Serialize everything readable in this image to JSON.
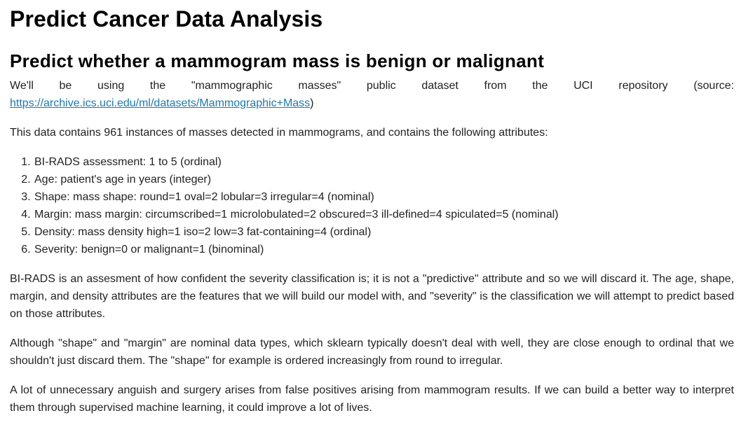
{
  "title": "Predict Cancer Data Analysis",
  "subtitle": "Predict whether a mammogram mass is benign or malignant",
  "intro": {
    "before": "We'll be using the \"mammographic masses\" public dataset from the UCI repository (source: ",
    "link": "https://archive.ics.uci.edu/ml/datasets/Mammographic+Mass",
    "after": ")"
  },
  "data_description": "This data contains 961 instances of masses detected in mammograms, and contains the following attributes:",
  "attributes": [
    "BI-RADS assessment: 1 to 5 (ordinal)",
    "Age: patient's age in years (integer)",
    "Shape: mass shape: round=1 oval=2 lobular=3 irregular=4 (nominal)",
    "Margin: mass margin: circumscribed=1 microlobulated=2 obscured=3 ill-defined=4 spiculated=5 (nominal)",
    "Density: mass density high=1 iso=2 low=3 fat-containing=4 (ordinal)",
    "Severity: benign=0 or malignant=1 (binominal)"
  ],
  "birads_paragraph": "BI-RADS is an assesment of how confident the severity classification is; it is not a \"predictive\" attribute and so we will discard it. The age, shape, margin, and density attributes are the features that we will build our model with, and \"severity\" is the classification we will attempt to predict based on those attributes.",
  "shape_paragraph": "Although \"shape\" and \"margin\" are nominal data types, which sklearn typically doesn't deal with well, they are close enough to ordinal that we shouldn't just discard them. The \"shape\" for example is ordered increasingly from round to irregular.",
  "lives_paragraph": "A lot of unnecessary anguish and surgery arises from false positives arising from mammogram results. If we can build a better way to interpret them through supervised machine learning, it could improve a lot of lives.",
  "colors": {
    "link": "#1a7ab5",
    "text": "#222222",
    "heading": "#000000"
  }
}
